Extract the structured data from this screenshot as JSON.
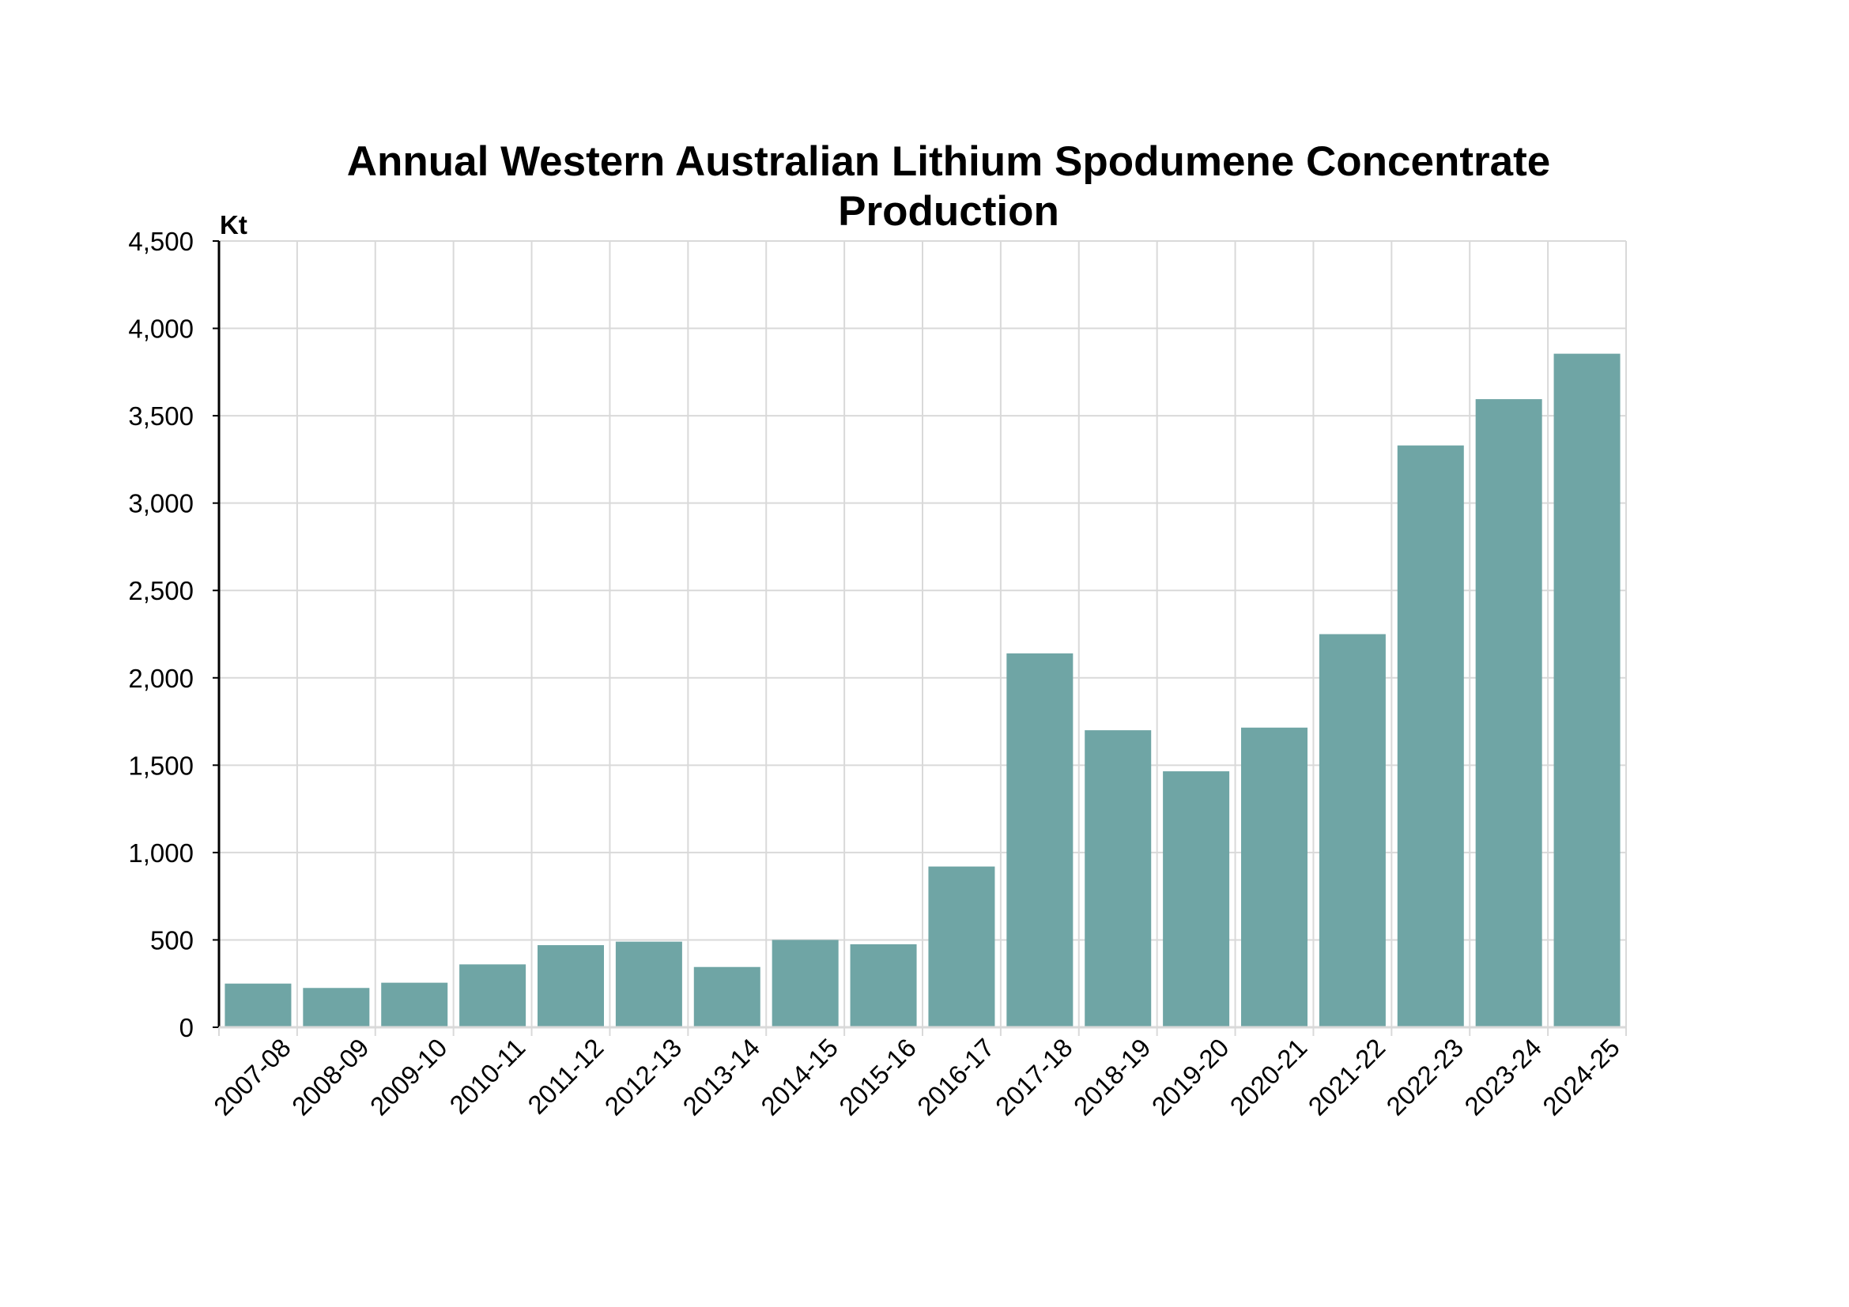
{
  "chart_data": {
    "type": "bar",
    "title_lines": [
      "Annual Western Australian Lithium Spodumene Concentrate",
      "Production"
    ],
    "y_unit": "Kt",
    "categories": [
      "2007-08",
      "2008-09",
      "2009-10",
      "2010-11",
      "2011-12",
      "2012-13",
      "2013-14",
      "2014-15",
      "2015-16",
      "2016-17",
      "2017-18",
      "2018-19",
      "2019-20",
      "2020-21",
      "2021-22",
      "2022-23",
      "2023-24",
      "2024-25"
    ],
    "values": [
      250,
      225,
      255,
      360,
      470,
      490,
      345,
      500,
      475,
      920,
      2140,
      1700,
      1465,
      1715,
      2250,
      3330,
      3595,
      3855
    ],
    "ylim": [
      0,
      4500
    ],
    "yticks": [
      0,
      500,
      1000,
      1500,
      2000,
      2500,
      3000,
      3500,
      4000,
      4500
    ],
    "ytick_labels": [
      "0",
      "500",
      "1,000",
      "1,500",
      "2,000",
      "2,500",
      "3,000",
      "3,500",
      "4,000",
      "4,500"
    ],
    "grid": true,
    "bar_color": "#6fa5a5",
    "grid_color": "#d9d9d9",
    "axis_color": "#000000"
  }
}
